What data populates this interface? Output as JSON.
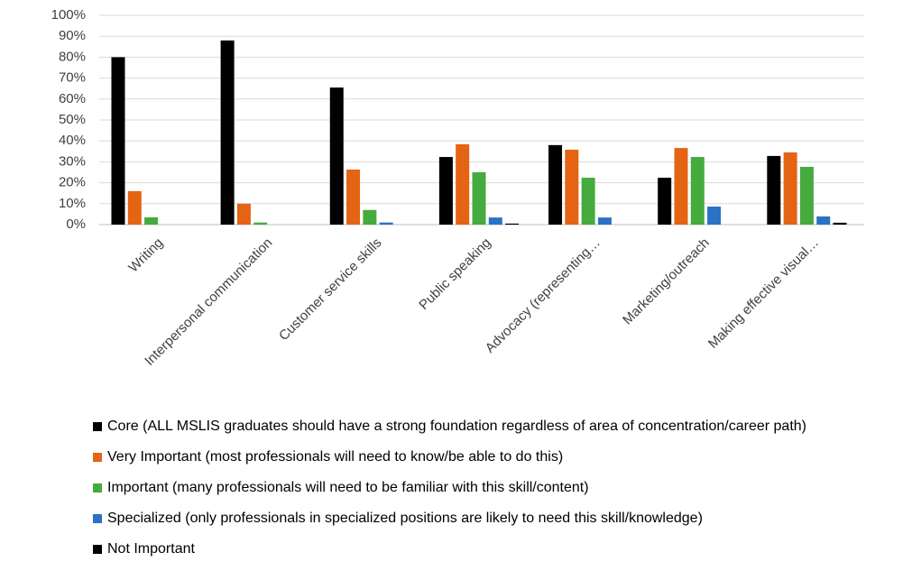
{
  "chart_data": {
    "type": "bar",
    "categories": [
      "Writing",
      "Interpersonal communication",
      "Customer service skills",
      "Public speaking",
      "Advocacy (representing…",
      "Marketing/outreach",
      "Making effective visual…"
    ],
    "series": [
      {
        "name": "Core (ALL MSLIS graduates should have a strong foundation regardless of area of concentration/career path)",
        "color": "#000000",
        "values": [
          80,
          88,
          65.5,
          32.3,
          38,
          22.4,
          32.8
        ]
      },
      {
        "name": "Very Important (most professionals will need to know/be able to do this)",
        "color": "#e46414",
        "values": [
          16,
          10,
          26.3,
          38.4,
          35.8,
          36.6,
          34.5
        ]
      },
      {
        "name": "Important (many professionals will need to be familiar with this skill/content)",
        "color": "#46ab3e",
        "values": [
          3.5,
          1,
          7,
          25,
          22.4,
          32.3,
          27.6
        ]
      },
      {
        "name": "Specialized (only professionals in specialized positions are likely to need this skill/knowledge)",
        "color": "#2a72c4",
        "values": [
          0,
          0,
          1,
          3.4,
          3.4,
          8.6,
          3.9
        ]
      },
      {
        "name": "Not Important",
        "color": "#000000",
        "values": [
          0,
          0,
          0,
          0.5,
          0,
          0,
          0.9
        ]
      }
    ],
    "ylim": [
      0,
      100
    ],
    "yticks": [
      {
        "value": 0,
        "label": "0%"
      },
      {
        "value": 10,
        "label": "10%"
      },
      {
        "value": 20,
        "label": "20%"
      },
      {
        "value": 30,
        "label": "30%"
      },
      {
        "value": 40,
        "label": "40%"
      },
      {
        "value": 50,
        "label": "50%"
      },
      {
        "value": 60,
        "label": "60%"
      },
      {
        "value": 70,
        "label": "70%"
      },
      {
        "value": 80,
        "label": "80%"
      },
      {
        "value": 90,
        "label": "90%"
      },
      {
        "value": 100,
        "label": "100%"
      }
    ],
    "grid": true,
    "legend": "bottom"
  }
}
